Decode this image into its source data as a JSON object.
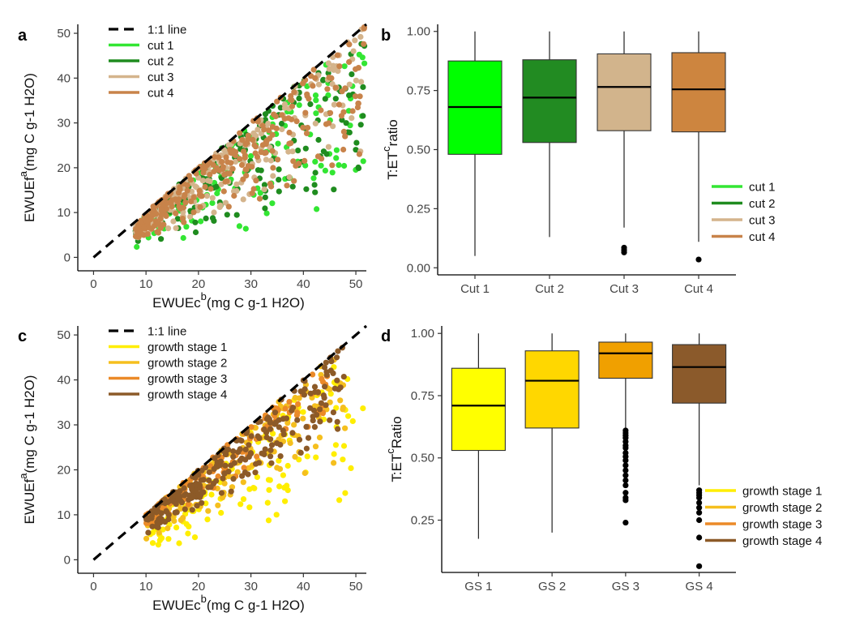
{
  "colors": {
    "cut1": "#33e633",
    "cut2": "#1f8c1f",
    "cut3": "#d4b48c",
    "cut4": "#c8834a",
    "gs1": "#ffee00",
    "gs2": "#f5bf1e",
    "gs3": "#eb8a28",
    "gs4": "#8c5a28",
    "box_cut1": "#00ff00",
    "box_cut2": "#228b22",
    "box_cut3": "#d2b48c",
    "box_cut4": "#cd853f",
    "box_gs1": "#ffff00",
    "box_gs2": "#ffd700",
    "box_gs3": "#f0a000",
    "box_gs4": "#8b5a2b"
  },
  "chart_data": [
    {
      "panel": "a",
      "type": "scatter",
      "xlabel": "EWUEc",
      "xlabel_sup": "b",
      "xlabel_unit": "(mg C g-1 H2O)",
      "ylabel": "EWUEf",
      "ylabel_sup": "a",
      "ylabel_unit": "(mg C g-1 H2O)",
      "xlim": [
        -3,
        52
      ],
      "ylim": [
        -3,
        52
      ],
      "xticks": [
        0,
        10,
        20,
        30,
        40,
        50
      ],
      "yticks": [
        0,
        10,
        20,
        30,
        40,
        50
      ],
      "reference_line": "1:1 line",
      "legend": [
        "1:1 line",
        "cut 1",
        "cut 2",
        "cut 3",
        "cut 4"
      ],
      "series": [
        {
          "name": "cut 1",
          "color_key": "cut1",
          "n": 140,
          "x_range": [
            8,
            52
          ],
          "ratio_range": [
            0.2,
            1.0
          ]
        },
        {
          "name": "cut 2",
          "color_key": "cut2",
          "n": 170,
          "x_range": [
            8,
            52
          ],
          "ratio_range": [
            0.25,
            1.0
          ]
        },
        {
          "name": "cut 3",
          "color_key": "cut3",
          "n": 200,
          "x_range": [
            8,
            52
          ],
          "ratio_range": [
            0.4,
            1.0
          ]
        },
        {
          "name": "cut 4",
          "color_key": "cut4",
          "n": 260,
          "x_range": [
            8,
            52
          ],
          "ratio_range": [
            0.4,
            1.0
          ]
        }
      ]
    },
    {
      "panel": "b",
      "type": "box",
      "ylabel": "T:ET",
      "ylabel_sup": "c",
      "ylabel_tail": "ratio",
      "ylim": [
        -0.03,
        1.03
      ],
      "yticks": [
        "0.00",
        "0.25",
        "0.50",
        "0.75",
        "1.00"
      ],
      "categories": [
        "Cut 1",
        "Cut 2",
        "Cut 3",
        "Cut 4"
      ],
      "legend": [
        "cut 1",
        "cut 2",
        "cut 3",
        "cut 4"
      ],
      "boxes": [
        {
          "color_key": "box_cut1",
          "min": 0.05,
          "q1": 0.48,
          "median": 0.68,
          "q3": 0.875,
          "max": 1.0,
          "outliers": []
        },
        {
          "color_key": "box_cut2",
          "min": 0.13,
          "q1": 0.53,
          "median": 0.72,
          "q3": 0.88,
          "max": 1.0,
          "outliers": []
        },
        {
          "color_key": "box_cut3",
          "min": 0.17,
          "q1": 0.58,
          "median": 0.765,
          "q3": 0.905,
          "max": 1.0,
          "outliers": [
            0.085,
            0.075,
            0.065
          ]
        },
        {
          "color_key": "box_cut4",
          "min": 0.11,
          "q1": 0.575,
          "median": 0.755,
          "q3": 0.91,
          "max": 1.0,
          "outliers": [
            0.035
          ]
        }
      ]
    },
    {
      "panel": "c",
      "type": "scatter",
      "xlabel": "EWUEc",
      "xlabel_sup": "b",
      "xlabel_unit": "(mg C g-1 H2O)",
      "ylabel": "EWUEf",
      "ylabel_sup": "a",
      "ylabel_unit": "(mg C g-1 H2O)",
      "xlim": [
        -3,
        52
      ],
      "ylim": [
        -3,
        52
      ],
      "xticks": [
        0,
        10,
        20,
        30,
        40,
        50
      ],
      "yticks": [
        0,
        10,
        20,
        30,
        40,
        50
      ],
      "reference_line": "1:1 line",
      "legend": [
        "1:1 line",
        "growth stage 1",
        "growth stage 2",
        "growth stage 3",
        "growth stage 4"
      ],
      "series": [
        {
          "name": "growth stage 1",
          "color_key": "gs1",
          "n": 150,
          "x_range": [
            10,
            52
          ],
          "ratio_range": [
            0.2,
            0.95
          ]
        },
        {
          "name": "growth stage 2",
          "color_key": "gs2",
          "n": 160,
          "x_range": [
            10,
            48
          ],
          "ratio_range": [
            0.4,
            1.0
          ]
        },
        {
          "name": "growth stage 3",
          "color_key": "gs3",
          "n": 120,
          "x_range": [
            10,
            45
          ],
          "ratio_range": [
            0.65,
            1.0
          ]
        },
        {
          "name": "growth stage 4",
          "color_key": "gs4",
          "n": 240,
          "x_range": [
            10,
            48
          ],
          "ratio_range": [
            0.55,
            1.0
          ]
        }
      ]
    },
    {
      "panel": "d",
      "type": "box",
      "ylabel": "T:ET",
      "ylabel_sup": "c",
      "ylabel_tail": "Ratio",
      "ylim": [
        0.04,
        1.03
      ],
      "yticks": [
        "0.25",
        "0.50",
        "0.75",
        "1.00"
      ],
      "categories": [
        "GS 1",
        "GS 2",
        "GS 3",
        "GS 4"
      ],
      "legend": [
        "growth stage 1",
        "growth stage 2",
        "growth stage 3",
        "growth stage 4"
      ],
      "boxes": [
        {
          "color_key": "box_gs1",
          "min": 0.175,
          "q1": 0.53,
          "median": 0.71,
          "q3": 0.86,
          "max": 1.0,
          "outliers": []
        },
        {
          "color_key": "box_gs2",
          "min": 0.2,
          "q1": 0.62,
          "median": 0.81,
          "q3": 0.93,
          "max": 1.0,
          "outliers": []
        },
        {
          "color_key": "box_gs3",
          "min": 0.62,
          "q1": 0.82,
          "median": 0.92,
          "q3": 0.965,
          "max": 1.0,
          "outliers": [
            0.61,
            0.6,
            0.59,
            0.58,
            0.565,
            0.55,
            0.54,
            0.52,
            0.505,
            0.49,
            0.47,
            0.45,
            0.43,
            0.41,
            0.39,
            0.36,
            0.34,
            0.33,
            0.24
          ]
        },
        {
          "color_key": "box_gs4",
          "min": 0.39,
          "q1": 0.72,
          "median": 0.865,
          "q3": 0.955,
          "max": 1.0,
          "outliers": [
            0.37,
            0.36,
            0.35,
            0.34,
            0.32,
            0.3,
            0.28,
            0.25,
            0.18,
            0.065
          ]
        }
      ]
    }
  ]
}
